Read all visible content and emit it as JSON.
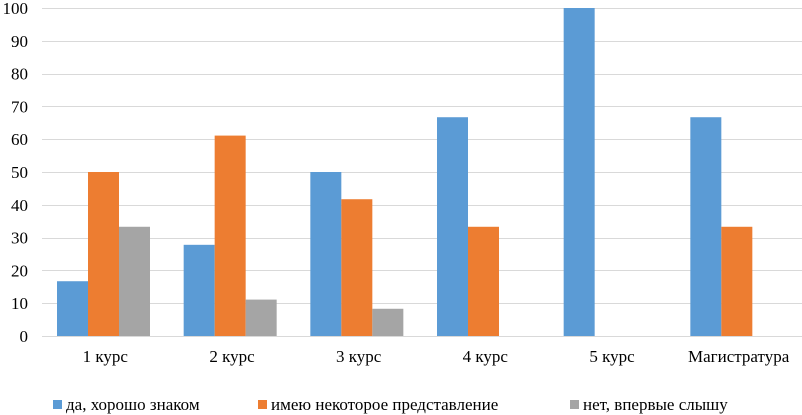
{
  "chart_data": {
    "type": "bar",
    "categories": [
      "1 курс",
      "2 курс",
      "3 курс",
      "4 курс",
      "5 курс",
      "Магистратура"
    ],
    "series": [
      {
        "name": "да, хорошо знаком",
        "color": "#5B9BD5",
        "values": [
          16.7,
          27.8,
          50,
          66.7,
          100,
          66.7
        ]
      },
      {
        "name": "имею некоторое представление",
        "color": "#ED7D31",
        "values": [
          50,
          61.1,
          41.7,
          33.3,
          0,
          33.3
        ]
      },
      {
        "name": "нет, впервые слышу",
        "color": "#A5A5A5",
        "values": [
          33.3,
          11.1,
          8.3,
          0,
          0,
          0
        ]
      }
    ],
    "ylim": [
      0,
      100
    ],
    "yticks": [
      0,
      10,
      20,
      30,
      40,
      50,
      60,
      70,
      80,
      90,
      100
    ],
    "grid": true,
    "legend": "bottom"
  }
}
